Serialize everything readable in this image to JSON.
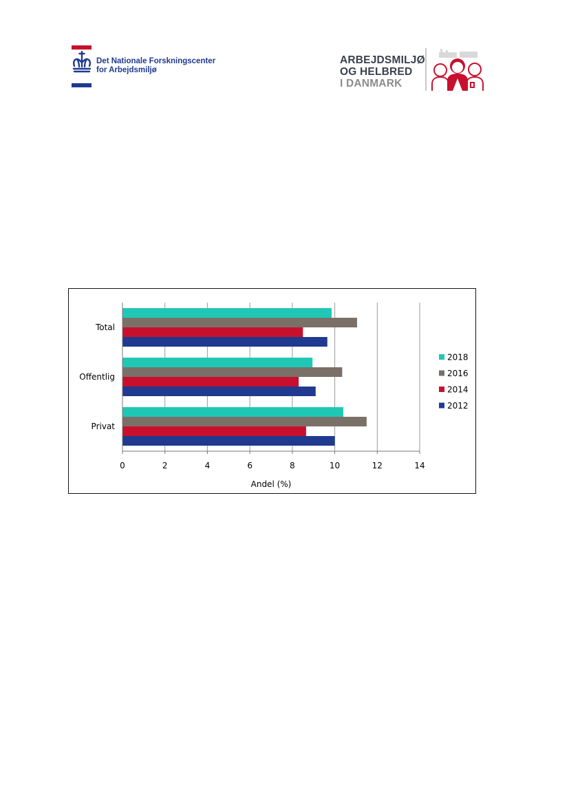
{
  "header": {
    "left_logo": {
      "org_name_line1": "Det Nationale Forskningscenter",
      "org_name_line2": "for Arbejdsmiljø",
      "icon": "crown-icon",
      "colors": {
        "red": "#c8102e",
        "blue": "#1f3a8f"
      }
    },
    "right_logo": {
      "line1": "ARBEJDSMILJØ",
      "line2": "OG HELBRED",
      "line3": "I DANMARK",
      "icon": "people-icon",
      "colors": {
        "dark": "#3a3f4d",
        "grey": "#8c8c8c",
        "red": "#c8102e"
      }
    }
  },
  "chart_data": {
    "type": "bar",
    "orientation": "horizontal",
    "categories": [
      "Total",
      "Offentlig",
      "Privat"
    ],
    "series": [
      {
        "name": "2018",
        "color": "#1ec8b4",
        "values": [
          9.85,
          8.95,
          10.4
        ]
      },
      {
        "name": "2016",
        "color": "#7a7068",
        "values": [
          11.05,
          10.35,
          11.5
        ]
      },
      {
        "name": "2014",
        "color": "#c8102e",
        "values": [
          8.5,
          8.3,
          8.65
        ]
      },
      {
        "name": "2012",
        "color": "#1f3a8f",
        "values": [
          9.65,
          9.1,
          10.0
        ]
      }
    ],
    "xlabel": "Andel (%)",
    "ylabel": "",
    "xlim": [
      0,
      14
    ],
    "xticks": [
      "0",
      "2",
      "4",
      "6",
      "8",
      "10",
      "12",
      "14"
    ],
    "grid": true,
    "legend_position": "right",
    "legend_order": [
      "2018",
      "2016",
      "2014",
      "2012"
    ]
  }
}
